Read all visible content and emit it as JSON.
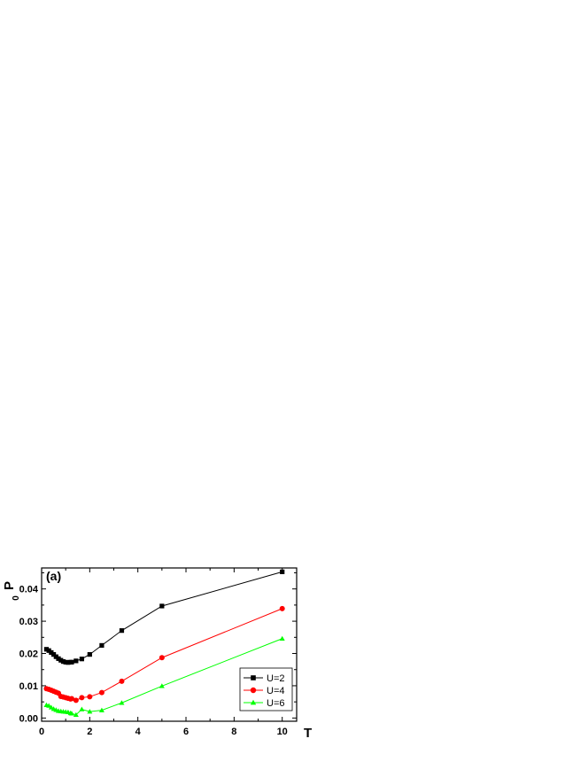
{
  "chart_data": {
    "type": "line",
    "panel_label": "(a)",
    "xlabel": "T",
    "ylabel": "P",
    "ylabel_subscript": "0",
    "xlim": [
      0,
      10.6
    ],
    "ylim": [
      -0.001,
      0.0465
    ],
    "x_ticks": [
      0,
      2,
      4,
      6,
      8,
      10
    ],
    "x_tick_labels": [
      "0",
      "2",
      "4",
      "6",
      "8",
      "10"
    ],
    "y_ticks": [
      0.0,
      0.01,
      0.02,
      0.03,
      0.04
    ],
    "y_tick_labels": [
      "0.00",
      "0.01",
      "0.02",
      "0.03",
      "0.04"
    ],
    "grid": false,
    "legend_position": "bottom-right",
    "series": [
      {
        "name": "U=2",
        "color": "#000000",
        "marker": "square",
        "x": [
          0.2,
          0.3,
          0.4,
          0.5,
          0.6,
          0.7,
          0.8,
          0.9,
          1.0,
          1.1,
          1.2,
          1.25,
          1.43,
          1.67,
          2.0,
          2.5,
          3.33,
          5.0,
          10.0
        ],
        "y": [
          0.0213,
          0.0209,
          0.0203,
          0.0197,
          0.019,
          0.0184,
          0.0179,
          0.0175,
          0.0173,
          0.0172,
          0.0173,
          0.0173,
          0.0177,
          0.0183,
          0.0197,
          0.0225,
          0.0271,
          0.0347,
          0.0453
        ]
      },
      {
        "name": "U=4",
        "color": "#ff0000",
        "marker": "circle",
        "x": [
          0.2,
          0.3,
          0.4,
          0.5,
          0.6,
          0.7,
          0.8,
          0.9,
          1.0,
          1.1,
          1.2,
          1.25,
          1.43,
          1.67,
          2.0,
          2.5,
          3.33,
          5.0,
          10.0
        ],
        "y": [
          0.0091,
          0.0089,
          0.0086,
          0.0083,
          0.008,
          0.0077,
          0.0067,
          0.0065,
          0.0063,
          0.0061,
          0.0059,
          0.006,
          0.0055,
          0.0063,
          0.0066,
          0.0079,
          0.0114,
          0.0187,
          0.0339
        ]
      },
      {
        "name": "U=6",
        "color": "#00ff00",
        "marker": "triangle",
        "x": [
          0.2,
          0.3,
          0.4,
          0.5,
          0.6,
          0.7,
          0.8,
          0.9,
          1.0,
          1.1,
          1.2,
          1.25,
          1.43,
          1.67,
          2.0,
          2.5,
          3.33,
          5.0,
          10.0
        ],
        "y": [
          0.004,
          0.0038,
          0.0033,
          0.0028,
          0.0025,
          0.0022,
          0.0021,
          0.002,
          0.0019,
          0.0018,
          0.0015,
          0.0014,
          0.001,
          0.0027,
          0.002,
          0.0024,
          0.0047,
          0.0099,
          0.0246
        ]
      }
    ]
  }
}
